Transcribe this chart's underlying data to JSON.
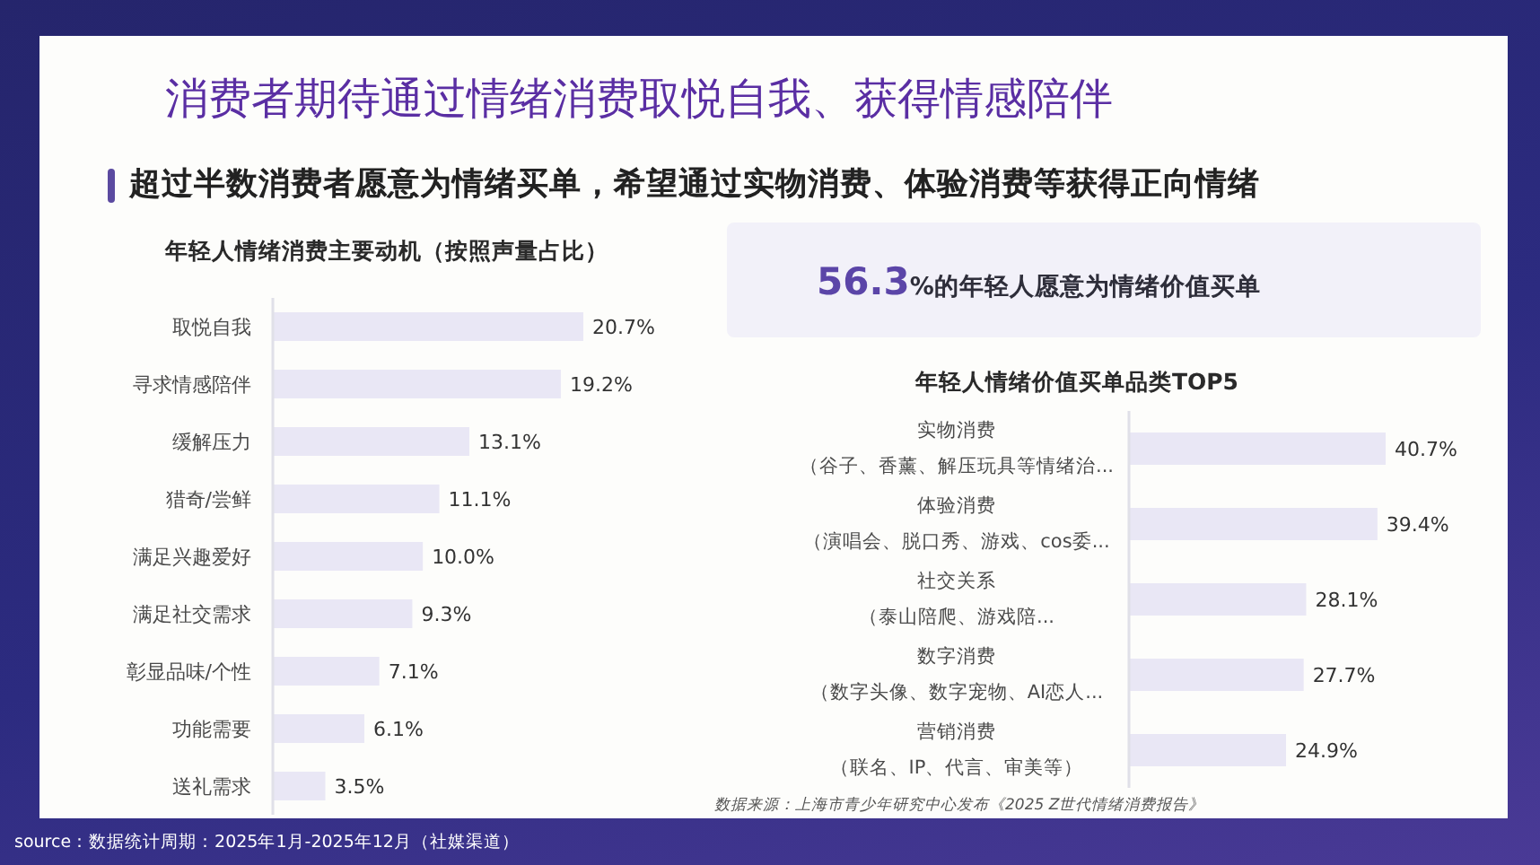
{
  "chart_data": [
    {
      "type": "other",
      "title": "消费者期待通过情绪消费取悦自我、获得情感陪伴",
      "subtitle": "超过半数消费者愿意为情绪买单，希望通过实物消费、体验消费等获得正向情绪",
      "annotations": [
        "source：数据统计周期：2025年1月-2025年12月（社媒渠道）"
      ]
    },
    {
      "type": "bar",
      "orientation": "horizontal",
      "title": "年轻人情绪消费主要动机（按照声量占比）",
      "categories": [
        "取悦自我",
        "寻求情感陪伴",
        "缓解压力",
        "猎奇/尝鲜",
        "满足兴趣爱好",
        "满足社交需求",
        "彰显品味/个性",
        "功能需要",
        "送礼需求"
      ],
      "values": [
        20.7,
        19.2,
        13.1,
        11.1,
        10.0,
        9.3,
        7.1,
        6.1,
        3.5
      ],
      "value_labels": [
        "20.7%",
        "19.2%",
        "13.1%",
        "11.1%",
        "10.0%",
        "9.3%",
        "7.1%",
        "6.1%",
        "3.5%"
      ],
      "color": "#e9e7f5"
    },
    {
      "type": "other",
      "annotations": [
        "56.3",
        "%的年轻人愿意为情绪价值买单"
      ]
    },
    {
      "type": "bar",
      "orientation": "horizontal",
      "title": "年轻人情绪价值买单品类TOP5",
      "categories": [
        "实物消费（谷子、香薰、解压玩具等情绪治...",
        "体验消费（演唱会、脱口秀、游戏、cos委...",
        "社交关系（泰山陪爬、游戏陪...",
        "数字消费（数字头像、数字宠物、AI恋人...",
        "营销消费（联名、IP、代言、审美等）"
      ],
      "values": [
        40.7,
        39.4,
        28.1,
        27.7,
        24.9
      ],
      "value_labels": [
        "40.7%",
        "39.4%",
        "28.1%",
        "27.7%",
        "24.9%"
      ],
      "color": "#e9e7f5",
      "annotations": [
        "数据来源：上海市青少年研究中心发布《2025 Z世代情绪消费报告》"
      ]
    }
  ]
}
